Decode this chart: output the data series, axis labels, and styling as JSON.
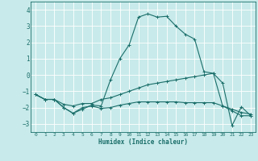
{
  "title": "",
  "xlabel": "Humidex (Indice chaleur)",
  "bg_color": "#c8eaea",
  "line_color": "#1a6e6a",
  "grid_color": "#ffffff",
  "xlim": [
    -0.5,
    23.5
  ],
  "ylim": [
    -3.5,
    4.5
  ],
  "yticks": [
    -3,
    -2,
    -1,
    0,
    1,
    2,
    3,
    4
  ],
  "xticks": [
    0,
    1,
    2,
    3,
    4,
    5,
    6,
    7,
    8,
    9,
    10,
    11,
    12,
    13,
    14,
    15,
    16,
    17,
    18,
    19,
    20,
    21,
    22,
    23
  ],
  "lines": [
    {
      "x": [
        0,
        1,
        2,
        3,
        4,
        5,
        6,
        7,
        8,
        9,
        10,
        11,
        12,
        13,
        14,
        15,
        16,
        17,
        18,
        19,
        20,
        21,
        22,
        23
      ],
      "y": [
        -1.2,
        -1.5,
        -1.5,
        -2.0,
        -2.35,
        -2.1,
        -1.85,
        -1.9,
        -0.3,
        1.0,
        1.85,
        3.55,
        3.75,
        3.55,
        3.6,
        3.0,
        2.5,
        2.2,
        0.2,
        0.1,
        -0.5,
        -3.1,
        -1.95,
        -2.5
      ]
    },
    {
      "x": [
        0,
        1,
        2,
        3,
        4,
        5,
        6,
        7,
        8,
        9,
        10,
        11,
        12,
        13,
        14,
        15,
        16,
        17,
        18,
        19,
        20,
        21,
        22,
        23
      ],
      "y": [
        -1.2,
        -1.5,
        -1.5,
        -1.8,
        -1.9,
        -1.75,
        -1.75,
        -1.5,
        -1.4,
        -1.2,
        -1.0,
        -0.8,
        -0.6,
        -0.5,
        -0.4,
        -0.3,
        -0.2,
        -0.1,
        0.0,
        0.1,
        -1.9,
        -2.1,
        -2.3,
        -2.4
      ]
    },
    {
      "x": [
        0,
        1,
        2,
        3,
        4,
        5,
        6,
        7,
        8,
        9,
        10,
        11,
        12,
        13,
        14,
        15,
        16,
        17,
        18,
        19,
        20,
        21,
        22,
        23
      ],
      "y": [
        -1.2,
        -1.5,
        -1.5,
        -2.0,
        -2.35,
        -2.0,
        -1.9,
        -2.05,
        -2.0,
        -1.85,
        -1.75,
        -1.65,
        -1.65,
        -1.65,
        -1.65,
        -1.65,
        -1.7,
        -1.7,
        -1.7,
        -1.7,
        -1.9,
        -2.2,
        -2.5,
        -2.5
      ]
    }
  ]
}
